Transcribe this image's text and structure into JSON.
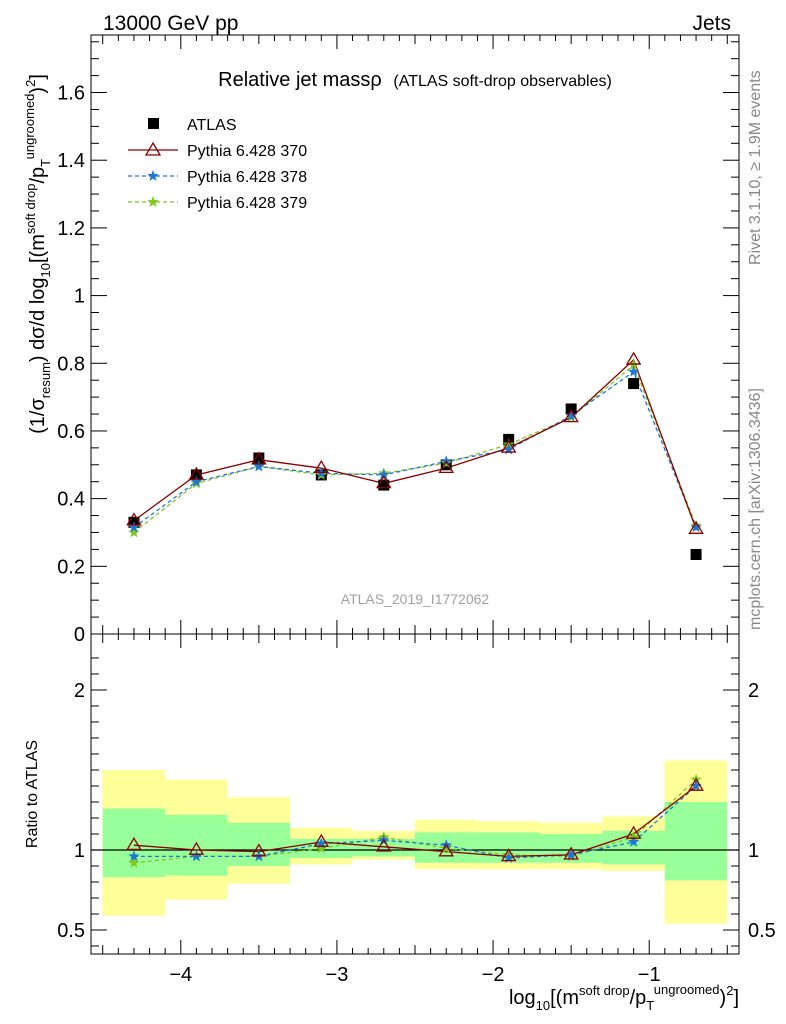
{
  "header": {
    "left": "13000 GeV pp",
    "right": "Jets"
  },
  "side_labels": {
    "rivet": "Rivet 3.1.10, ≥ 1.9M events",
    "mcplots": "mcplots.cern.ch [arXiv:1306.3436]"
  },
  "watermark": "ATLAS_2019_I1772062",
  "colors": {
    "atlas": "#000000",
    "p370": "#8b0000",
    "p378": "#1f77d4",
    "p379": "#7ec820",
    "band_yellow": "#ffff99",
    "band_green": "#99ff99"
  },
  "chart_data": [
    {
      "type": "scatter",
      "title_main": "Relative jet massρ",
      "title_sub": "(ATLAS soft-drop observables)",
      "ylabel": {
        "p1": "(1/σ",
        "p2": "resum",
        "p3": ") dσ/d log",
        "p4": "10",
        "p5": "[(m",
        "p6": "soft drop",
        "p7": "/p",
        "p8": "T",
        "p9": "ungroomed",
        "p10": ")",
        "p11": "2",
        "p12": "]"
      },
      "xlim": [
        -4.575,
        -0.425
      ],
      "ylim": [
        0,
        1.77
      ],
      "yticks": [
        0,
        0.2,
        0.4,
        0.6,
        0.8,
        1,
        1.2,
        1.4,
        1.6
      ],
      "ytick_labels": [
        "0",
        "0.2",
        "0.4",
        "0.6",
        "0.8",
        "1",
        "1.2",
        "1.4",
        "1.6"
      ],
      "x": [
        -4.3,
        -3.9,
        -3.5,
        -3.1,
        -2.7,
        -2.3,
        -1.9,
        -1.5,
        -1.1,
        -0.7
      ],
      "series": [
        {
          "name": "ATLAS",
          "values": [
            0.33,
            0.47,
            0.52,
            0.47,
            0.44,
            0.5,
            0.575,
            0.665,
            0.74,
            0.235
          ]
        },
        {
          "name": "Pythia 6.428 370",
          "values": [
            0.335,
            0.47,
            0.515,
            0.49,
            0.445,
            0.49,
            0.55,
            0.64,
            0.81,
            0.31
          ]
        },
        {
          "name": "Pythia 6.428 378",
          "values": [
            0.315,
            0.45,
            0.495,
            0.475,
            0.47,
            0.51,
            0.545,
            0.645,
            0.775,
            0.315
          ]
        },
        {
          "name": "Pythia 6.428 379",
          "values": [
            0.3,
            0.445,
            0.495,
            0.47,
            0.475,
            0.505,
            0.56,
            0.64,
            0.795,
            0.32
          ]
        }
      ]
    },
    {
      "type": "scatter",
      "ylabel": "Ratio to ATLAS",
      "xlabel": {
        "p1": "log",
        "p2": "10",
        "p3": "[(m",
        "p4": "soft drop",
        "p5": "/p",
        "p6": "T",
        "p7": "ungroomed",
        "p8": ")",
        "p9": "2",
        "p10": "]"
      },
      "xlim": [
        -4.575,
        -0.425
      ],
      "ylim": [
        0.35,
        2.35
      ],
      "yticks": [
        0.5,
        1,
        2
      ],
      "ytick_labels": [
        "0.5",
        "1",
        "2"
      ],
      "xticks": [
        -4,
        -3,
        -2,
        -1
      ],
      "xtick_labels": [
        "−4",
        "−3",
        "−2",
        "−1"
      ],
      "bin_edges": [
        -4.5,
        -4.1,
        -3.7,
        -3.3,
        -2.9,
        -2.5,
        -2.1,
        -1.7,
        -1.3,
        -0.9,
        -0.5
      ],
      "band_yellow": {
        "low": [
          0.59,
          0.69,
          0.79,
          0.91,
          0.94,
          0.88,
          0.88,
          0.88,
          0.87,
          0.54
        ],
        "high": [
          1.5,
          1.44,
          1.33,
          1.14,
          1.12,
          1.19,
          1.18,
          1.17,
          1.21,
          1.56
        ]
      },
      "band_green": {
        "low": [
          0.83,
          0.84,
          0.9,
          0.95,
          0.96,
          0.92,
          0.92,
          0.92,
          0.91,
          0.81
        ],
        "high": [
          1.26,
          1.22,
          1.17,
          1.07,
          1.07,
          1.11,
          1.11,
          1.1,
          1.12,
          1.3
        ]
      },
      "x": [
        -4.3,
        -3.9,
        -3.5,
        -3.1,
        -2.7,
        -2.3,
        -1.9,
        -1.5,
        -1.1,
        -0.7
      ],
      "series": [
        {
          "name": "Pythia 6.428 370",
          "values": [
            1.03,
            1.0,
            0.99,
            1.05,
            1.02,
            0.99,
            0.96,
            0.97,
            1.1,
            1.4
          ]
        },
        {
          "name": "Pythia 6.428 378",
          "values": [
            0.96,
            0.96,
            0.96,
            1.04,
            1.06,
            1.03,
            0.95,
            0.97,
            1.05,
            1.4
          ]
        },
        {
          "name": "Pythia 6.428 379",
          "values": [
            0.92,
            0.96,
            0.96,
            1.01,
            1.08,
            1.01,
            0.97,
            0.96,
            1.08,
            1.44
          ]
        }
      ]
    }
  ]
}
